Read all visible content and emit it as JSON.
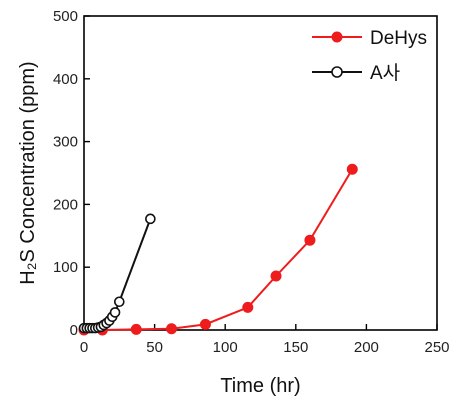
{
  "chart_data": {
    "type": "line",
    "xlabel": "Time (hr)",
    "ylabel": "H₂S Concentration (ppm)",
    "xlim": [
      0,
      250
    ],
    "ylim": [
      0,
      500
    ],
    "xticks": [
      0,
      50,
      100,
      150,
      200,
      250
    ],
    "yticks": [
      0,
      100,
      200,
      300,
      400,
      500
    ],
    "grid": false,
    "legend_position": "top-right",
    "series": [
      {
        "name": "DeHys",
        "color": "#ee1c1c",
        "marker": "filled-circle",
        "x": [
          0,
          13,
          37,
          62,
          86,
          116,
          136,
          160,
          190
        ],
        "y": [
          0,
          0,
          1,
          2,
          9,
          36,
          86,
          143,
          256
        ]
      },
      {
        "name": "A사",
        "color": "#111111",
        "marker": "open-circle",
        "x": [
          0,
          2,
          4,
          6,
          8,
          10,
          12,
          14,
          16,
          18,
          20,
          22,
          25,
          47
        ],
        "y": [
          3,
          3,
          3,
          3,
          3,
          4,
          5,
          8,
          11,
          15,
          21,
          28,
          45,
          177
        ]
      }
    ]
  }
}
